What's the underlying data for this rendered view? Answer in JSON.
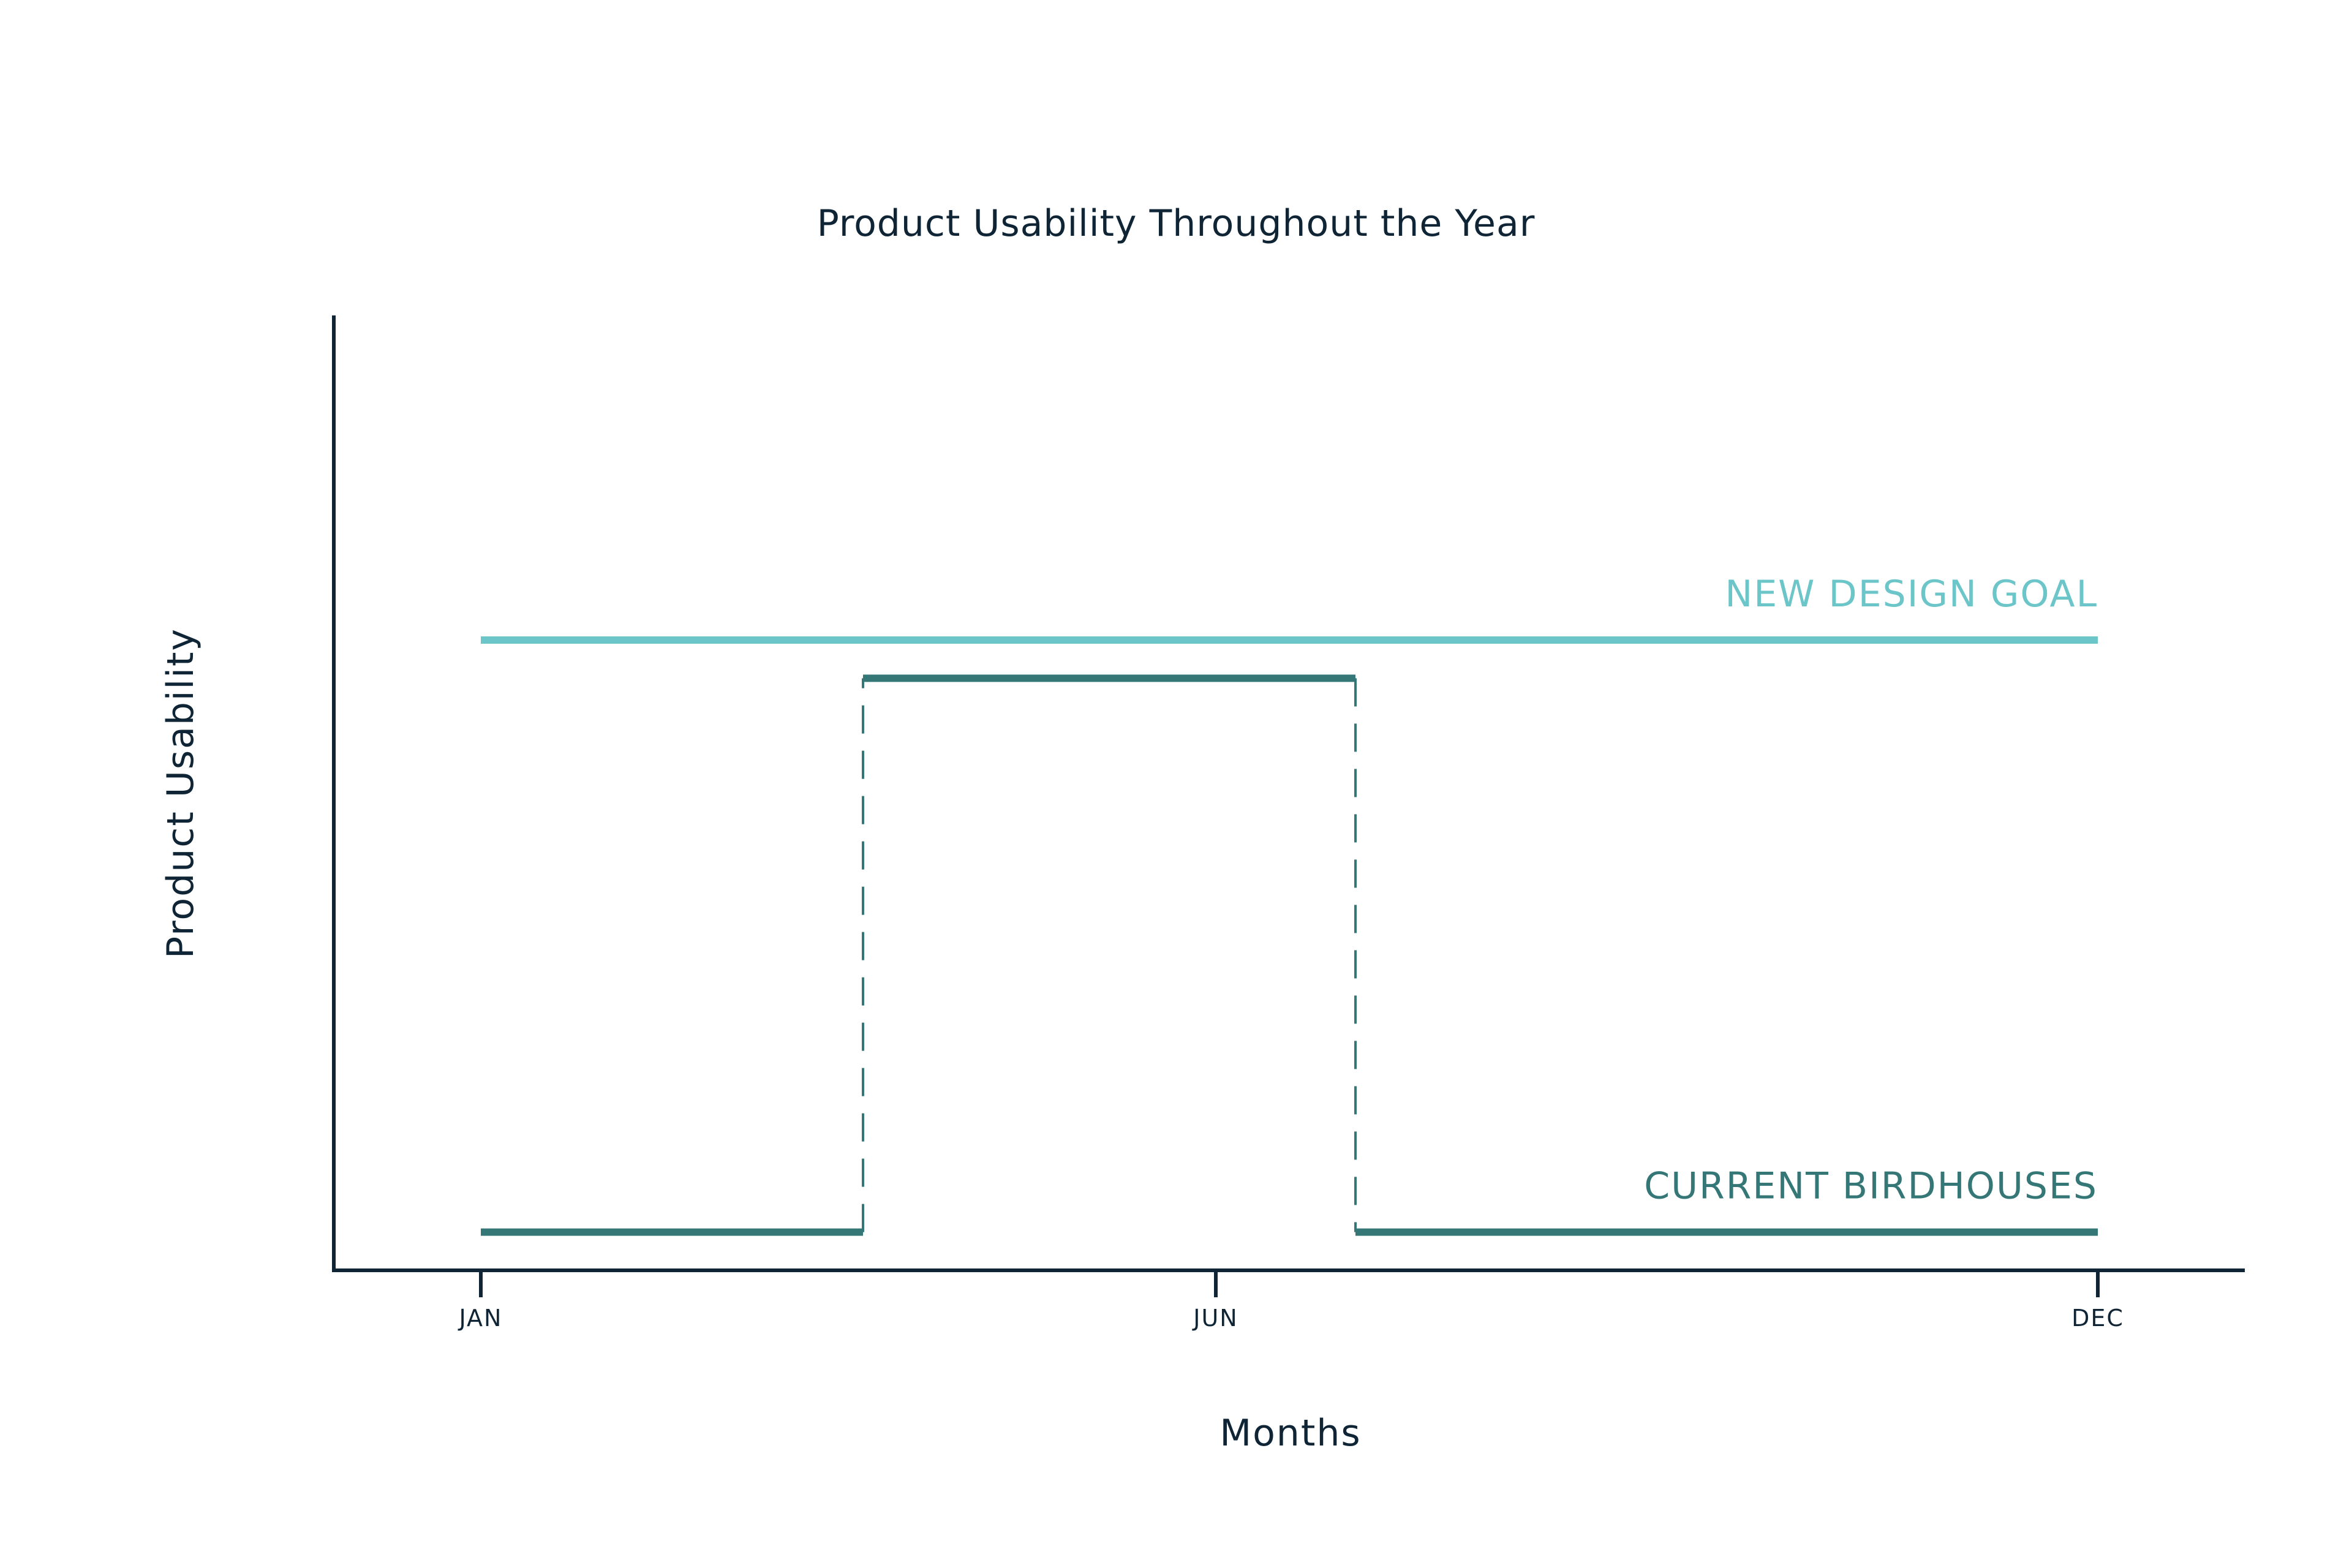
{
  "chart_data": {
    "type": "line",
    "title": "Product Usability Throughout the Year",
    "xlabel": "Months",
    "ylabel": "Product Usability",
    "x_ticks": [
      "JAN",
      "JUN",
      "DEC"
    ],
    "x_tick_values": [
      1,
      6,
      12
    ],
    "xlim": [
      0,
      13
    ],
    "ylim": [
      0,
      100
    ],
    "grid": false,
    "legend": "inline labels at right end of series",
    "series": [
      {
        "name": "NEW DESIGN GOAL",
        "color": "#6cc5c8",
        "style": "solid",
        "points": [
          {
            "x": 1,
            "y": 66
          },
          {
            "x": 12,
            "y": 66
          }
        ]
      },
      {
        "name": "CURRENT BIRDHOUSES",
        "color": "#357777",
        "style": "step",
        "points": [
          {
            "x": 1,
            "y": 4
          },
          {
            "x": 3.6,
            "y": 4
          },
          {
            "x": 3.6,
            "y": 62
          },
          {
            "x": 6.95,
            "y": 62
          },
          {
            "x": 6.95,
            "y": 4
          },
          {
            "x": 12,
            "y": 4
          }
        ]
      }
    ]
  },
  "colors": {
    "axis": "#0f2535",
    "text": "#0f2535",
    "goal": "#6cc5c8",
    "current": "#357777"
  }
}
